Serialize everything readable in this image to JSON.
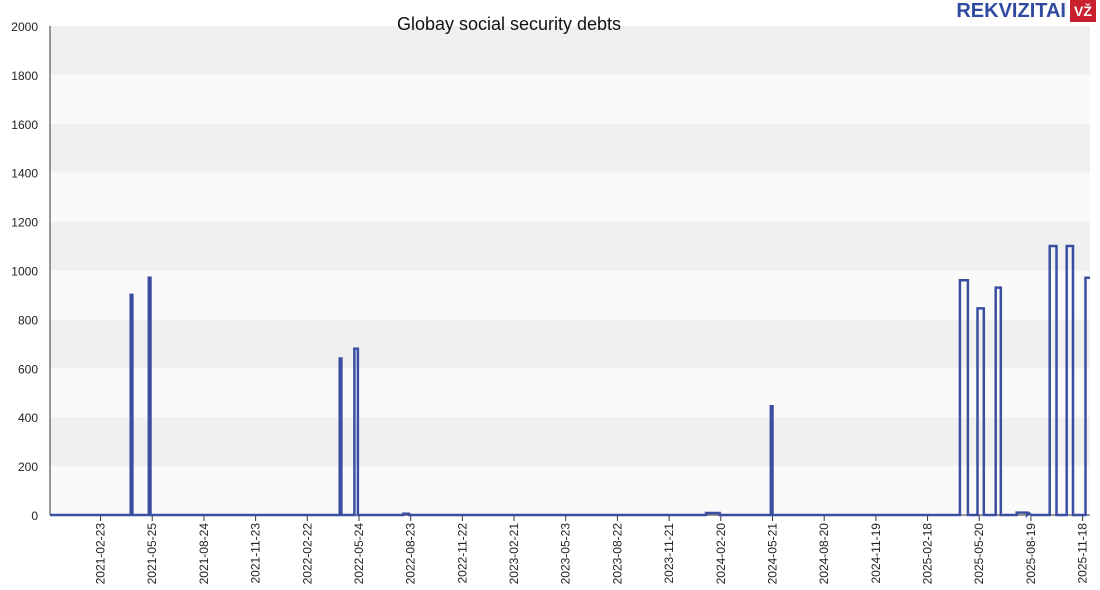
{
  "chart_data": {
    "type": "line",
    "title": "Globay social security debts",
    "xlabel": "",
    "ylabel": "",
    "ylim": [
      0,
      2000
    ],
    "xlim": [
      "2020-11-26",
      "2025-12-01"
    ],
    "yticks": [
      0,
      200,
      400,
      600,
      800,
      1000,
      1200,
      1400,
      1600,
      1800,
      2000
    ],
    "xticks": [
      "2021-02-23",
      "2021-05-25",
      "2021-08-24",
      "2021-11-23",
      "2022-02-22",
      "2022-05-24",
      "2022-08-23",
      "2022-11-22",
      "2023-02-21",
      "2023-05-23",
      "2023-08-22",
      "2023-11-21",
      "2024-02-20",
      "2024-05-21",
      "2024-08-20",
      "2024-11-19",
      "2025-02-18",
      "2025-05-20",
      "2025-08-19",
      "2025-11-18"
    ],
    "grid": true,
    "series": [
      {
        "name": "Social security debts",
        "color": "#3a4fa0",
        "points": [
          [
            "2020-11-26",
            0
          ],
          [
            "2021-04-17",
            0
          ],
          [
            "2021-04-17",
            900
          ],
          [
            "2021-04-20",
            900
          ],
          [
            "2021-04-20",
            0
          ],
          [
            "2021-05-19",
            0
          ],
          [
            "2021-05-19",
            970
          ],
          [
            "2021-05-22",
            970
          ],
          [
            "2021-05-22",
            0
          ],
          [
            "2022-04-20",
            0
          ],
          [
            "2022-04-20",
            640
          ],
          [
            "2022-04-23",
            640
          ],
          [
            "2022-04-23",
            0
          ],
          [
            "2022-05-16",
            0
          ],
          [
            "2022-05-16",
            680
          ],
          [
            "2022-05-22",
            680
          ],
          [
            "2022-05-22",
            0
          ],
          [
            "2022-08-10",
            0
          ],
          [
            "2022-08-10",
            5
          ],
          [
            "2022-08-20",
            5
          ],
          [
            "2022-08-20",
            0
          ],
          [
            "2024-01-25",
            0
          ],
          [
            "2024-01-25",
            8
          ],
          [
            "2024-02-18",
            8
          ],
          [
            "2024-02-18",
            0
          ],
          [
            "2024-05-18",
            0
          ],
          [
            "2024-05-18",
            445
          ],
          [
            "2024-05-21",
            445
          ],
          [
            "2024-05-21",
            0
          ],
          [
            "2025-04-16",
            0
          ],
          [
            "2025-04-16",
            960
          ],
          [
            "2025-04-30",
            960
          ],
          [
            "2025-04-30",
            0
          ],
          [
            "2025-05-17",
            0
          ],
          [
            "2025-05-17",
            845
          ],
          [
            "2025-05-28",
            845
          ],
          [
            "2025-05-28",
            0
          ],
          [
            "2025-06-18",
            0
          ],
          [
            "2025-06-18",
            930
          ],
          [
            "2025-06-27",
            930
          ],
          [
            "2025-06-27",
            0
          ],
          [
            "2025-07-25",
            0
          ],
          [
            "2025-07-25",
            10
          ],
          [
            "2025-08-12",
            10
          ],
          [
            "2025-08-12",
            0
          ],
          [
            "2025-08-15",
            8
          ],
          [
            "2025-08-20",
            0
          ],
          [
            "2025-09-21",
            0
          ],
          [
            "2025-09-21",
            1100
          ],
          [
            "2025-10-03",
            1100
          ],
          [
            "2025-10-03",
            0
          ],
          [
            "2025-10-21",
            0
          ],
          [
            "2025-10-21",
            1100
          ],
          [
            "2025-11-01",
            1100
          ],
          [
            "2025-11-01",
            0
          ],
          [
            "2025-11-23",
            0
          ],
          [
            "2025-11-23",
            970
          ],
          [
            "2025-12-01",
            970
          ]
        ]
      }
    ]
  },
  "logo": {
    "text": "REKVIZITAI",
    "badge": "VŽ"
  }
}
